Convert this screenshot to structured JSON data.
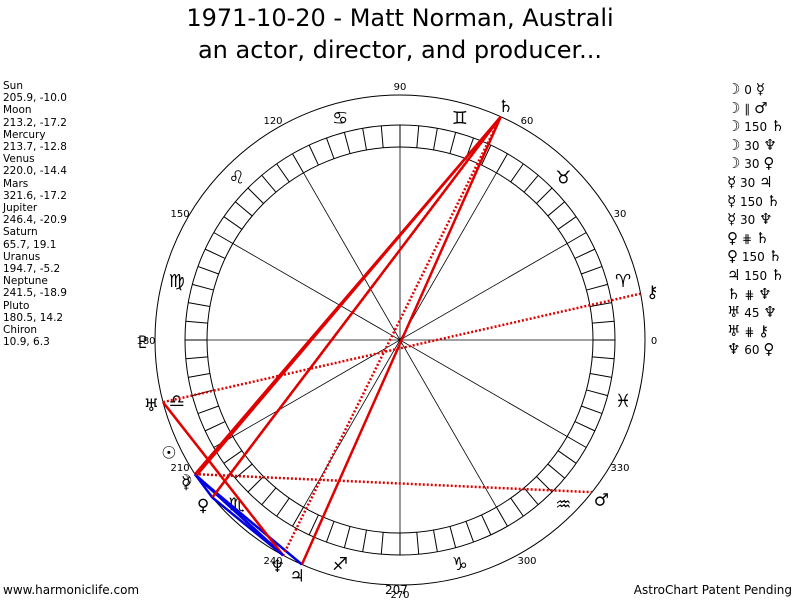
{
  "header": {
    "title": "1971-10-20 - Matt Norman, Australi",
    "subtitle": "an actor, director, and producer..."
  },
  "planets": [
    {
      "name": "Sun",
      "coords": "205.9, -10.0",
      "glyph": "☉"
    },
    {
      "name": "Moon",
      "coords": "213.2, -17.2",
      "glyph": "☽"
    },
    {
      "name": "Mercury",
      "coords": "213.7, -12.8",
      "glyph": "☿"
    },
    {
      "name": "Venus",
      "coords": "220.0, -14.4",
      "glyph": "♀"
    },
    {
      "name": "Mars",
      "coords": "321.6, -17.2",
      "glyph": "♂"
    },
    {
      "name": "Jupiter",
      "coords": "246.4, -20.9",
      "glyph": "♃"
    },
    {
      "name": "Saturn",
      "coords": "65.7, 19.1",
      "glyph": "♄"
    },
    {
      "name": "Uranus",
      "coords": "194.7, -5.2",
      "glyph": "♅"
    },
    {
      "name": "Neptune",
      "coords": "241.5, -18.9",
      "glyph": "♆"
    },
    {
      "name": "Pluto",
      "coords": "180.5, 14.2",
      "glyph": "♇"
    },
    {
      "name": "Chiron",
      "coords": "10.9, 6.3",
      "glyph": "⚷"
    }
  ],
  "aspects": [
    {
      "p1": "☽",
      "angle": "0",
      "p2": "☿"
    },
    {
      "p1": "☽",
      "angle": "∥",
      "p2": "♂"
    },
    {
      "p1": "☽",
      "angle": "150",
      "p2": "♄"
    },
    {
      "p1": "☽",
      "angle": "30",
      "p2": "♆"
    },
    {
      "p1": "☽",
      "angle": "30",
      "p2": "♀"
    },
    {
      "p1": "☿",
      "angle": "30",
      "p2": "♃"
    },
    {
      "p1": "☿",
      "angle": "150",
      "p2": "♄"
    },
    {
      "p1": "☿",
      "angle": "30",
      "p2": "♆"
    },
    {
      "p1": "♀",
      "angle": "⋕",
      "p2": "♄"
    },
    {
      "p1": "♀",
      "angle": "150",
      "p2": "♄"
    },
    {
      "p1": "♃",
      "angle": "150",
      "p2": "♄"
    },
    {
      "p1": "♄",
      "angle": "⋕",
      "p2": "♆"
    },
    {
      "p1": "♅",
      "angle": "45",
      "p2": "♆"
    },
    {
      "p1": "♅",
      "angle": "⋕",
      "p2": "⚷"
    },
    {
      "p1": "♆",
      "angle": "60",
      "p2": "♀"
    }
  ],
  "wheel": {
    "degree_labels": [
      "0",
      "30",
      "60",
      "90",
      "120",
      "150",
      "180",
      "210",
      "240",
      "270",
      "300",
      "330"
    ],
    "zodiac_glyphs": [
      "♈",
      "♉",
      "♊",
      "♋",
      "♌",
      "♍",
      "♎",
      "♏",
      "♐",
      "♑",
      "♒",
      "♓"
    ],
    "bottom_label": "207",
    "colors": {
      "blue": "#0000e0",
      "red": "#e00000",
      "gold": "#d4a020"
    }
  },
  "footer": {
    "left": "www.harmoniclife.com",
    "right": "AstroChart Patent Pending"
  }
}
